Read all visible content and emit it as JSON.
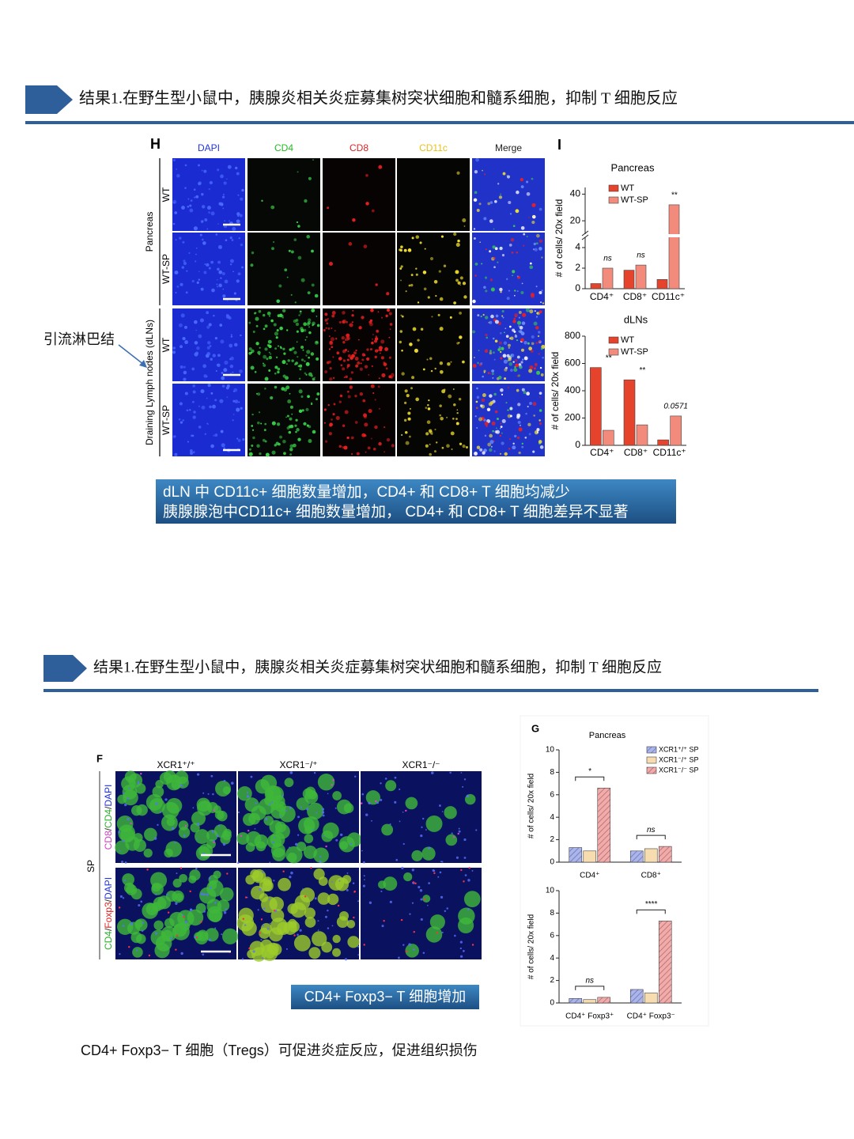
{
  "sections": [
    {
      "title": "结果1.在野生型小鼠中，胰腺炎相关炎症募集树突状细胞和髓系细胞，抑制 T 细胞反应"
    },
    {
      "title": "结果1.在野生型小鼠中，胰腺炎相关炎症募集树突状细胞和髓系细胞，抑制 T 细胞反应"
    }
  ],
  "panel_h": {
    "letter": "H",
    "columns": [
      "DAPI",
      "CD4",
      "CD8",
      "CD11c",
      "Merge"
    ],
    "groups": [
      {
        "label": "Pancreas",
        "rows": [
          "WT",
          "WT-SP"
        ]
      },
      {
        "label": "Draining Lymph nodes (dLNs)",
        "rows": [
          "WT",
          "WT-SP"
        ]
      }
    ]
  },
  "callout": "引流淋巴结",
  "panel_i": {
    "letter": "I",
    "charts": [
      {
        "type": "bar",
        "title": "Pancreas",
        "y_label": "# of cells/ 20x field",
        "categories": [
          "CD4⁺",
          "CD8⁺",
          "CD11c⁺"
        ],
        "series": [
          {
            "name": "WT",
            "color": "#e5432b",
            "values": [
              0.5,
              1.8,
              0.9
            ]
          },
          {
            "name": "WT-SP",
            "color": "#f28b7c",
            "values": [
              2,
              2.3,
              32
            ]
          }
        ],
        "annotations": [
          "ns",
          "ns",
          "**"
        ],
        "ylim": [
          0,
          45
        ],
        "ybreak": [
          5,
          10
        ],
        "yticks": [
          0,
          2,
          4,
          20,
          40
        ]
      },
      {
        "type": "bar",
        "title": "dLNs",
        "y_label": "# of cells/ 20x field",
        "categories": [
          "CD4⁺",
          "CD8⁺",
          "CD11c⁺"
        ],
        "series": [
          {
            "name": "WT",
            "color": "#e5432b",
            "values": [
              570,
              480,
              40
            ]
          },
          {
            "name": "WT-SP",
            "color": "#f28b7c",
            "values": [
              110,
              150,
              215
            ]
          }
        ],
        "annotations": [
          "**",
          "**",
          "0.0571"
        ],
        "ylim": [
          0,
          800
        ],
        "yticks": [
          0,
          200,
          400,
          600,
          800
        ]
      }
    ]
  },
  "summary": {
    "lines": [
      "dLN 中 CD11c+ 细胞数量增加，CD4+ 和 CD8+ T 细胞均减少",
      "胰腺腺泡中CD11c+ 细胞数量增加， CD4+ 和 CD8+ T 细胞差异不显著"
    ]
  },
  "panel_f": {
    "letter": "F",
    "group": "SP",
    "columns": [
      "XCR1⁺/⁺",
      "XCR1⁻/⁺",
      "XCR1⁻/⁻"
    ],
    "row_labels": [
      [
        "CD8",
        "/",
        "CD4",
        "/",
        "DAPI"
      ],
      [
        "CD4",
        "/",
        "Foxp3",
        "/",
        "DAPI"
      ]
    ]
  },
  "panel_g": {
    "letter": "G",
    "title": "Pancreas",
    "charts": [
      {
        "type": "bar",
        "y_label": "# of cells/ 20x field",
        "categories": [
          "CD4⁺",
          "CD8⁺"
        ],
        "series": [
          {
            "name": "XCR1⁺/⁺ SP",
            "color": "#aab4ee",
            "hatch": true,
            "values": [
              1.3,
              1.0
            ]
          },
          {
            "name": "XCR1⁻/⁺ SP",
            "color": "#f6dcae",
            "values": [
              1.0,
              1.2
            ]
          },
          {
            "name": "XCR1⁻/⁻ SP",
            "color": "#f5aaaa",
            "hatch": true,
            "values": [
              6.6,
              1.4
            ]
          }
        ],
        "annotations": [
          "*",
          "ns"
        ],
        "brackets": true,
        "ylim": [
          0,
          10
        ],
        "yticks": [
          0,
          2,
          4,
          6,
          8,
          10
        ]
      },
      {
        "type": "bar",
        "y_label": "# of cells/ 20x field",
        "categories": [
          "CD4⁺ Foxp3⁺",
          "CD4⁺ Foxp3⁻"
        ],
        "series": [
          {
            "color": "#aab4ee",
            "hatch": true,
            "values": [
              0.4,
              1.2
            ]
          },
          {
            "color": "#f6dcae",
            "values": [
              0.3,
              0.9
            ]
          },
          {
            "color": "#f5aaaa",
            "hatch": true,
            "values": [
              0.5,
              7.3
            ]
          }
        ],
        "annotations": [
          "ns",
          "****"
        ],
        "brackets": true,
        "ylim": [
          0,
          10
        ],
        "yticks": [
          0,
          2,
          4,
          6,
          8,
          10
        ]
      }
    ]
  },
  "highlight": "CD4+ Foxp3− T 细胞增加",
  "footer": "CD4+ Foxp3− T 细胞（Tregs）可促进炎症反应，促进组织损伤"
}
